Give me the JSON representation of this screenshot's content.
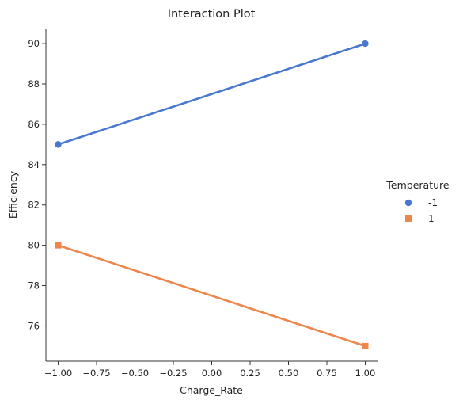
{
  "chart_data": {
    "type": "line",
    "title": "Interaction Plot",
    "xlabel": "Charge_Rate",
    "ylabel": "Efficiency",
    "xlim": [
      -1.08,
      1.08
    ],
    "ylim": [
      74.25,
      90.75
    ],
    "xticks": [
      -1.0,
      -0.75,
      -0.5,
      -0.25,
      0.0,
      0.25,
      0.5,
      0.75,
      1.0
    ],
    "xtick_labels": [
      "−1.00",
      "−0.75",
      "−0.50",
      "−0.25",
      "0.00",
      "0.25",
      "0.50",
      "0.75",
      "1.00"
    ],
    "yticks": [
      76,
      78,
      80,
      82,
      84,
      86,
      88,
      90
    ],
    "ytick_labels": [
      "76",
      "78",
      "80",
      "82",
      "84",
      "86",
      "88",
      "90"
    ],
    "grid": false,
    "legend": {
      "title": "Temperature",
      "placement": "right"
    },
    "series": [
      {
        "name": "-1",
        "marker": "circle",
        "color": "#4878d0",
        "x": [
          -1,
          1
        ],
        "y": [
          85,
          90
        ]
      },
      {
        "name": "1",
        "marker": "square",
        "color": "#ee854a",
        "x": [
          -1,
          1
        ],
        "y": [
          80,
          75
        ]
      }
    ]
  }
}
